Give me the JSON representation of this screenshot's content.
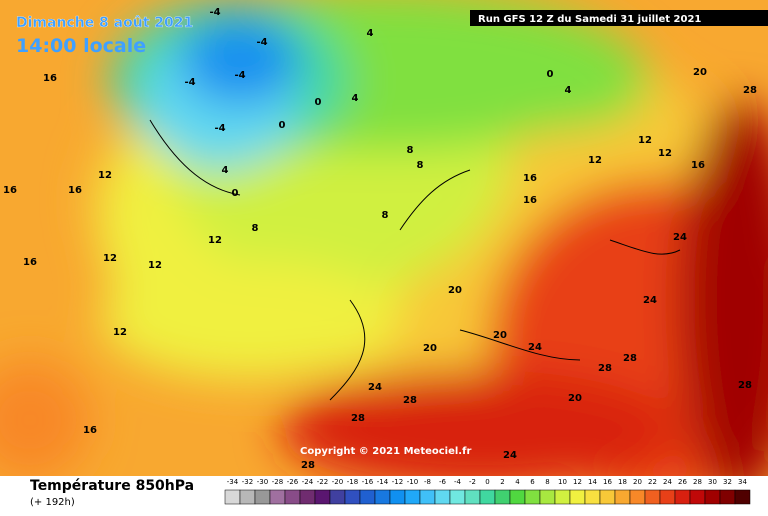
{
  "header": {
    "title": "Dimanche 8 août 2021",
    "time": "14:00 locale",
    "run": "Run GFS 12 Z du Samedi 31 juillet 2021"
  },
  "copyright": "Copyright © 2021 Meteociel.fr",
  "footer": {
    "variable": "Température 850hPa",
    "lead": "(+ 192h)"
  },
  "map_labels": [
    "-4",
    "-4",
    "-4",
    "-4",
    "-4",
    "0",
    "0",
    "4",
    "4",
    "0",
    "4",
    "8",
    "8",
    "12",
    "12",
    "16",
    "16",
    "16",
    "16",
    "12",
    "12",
    "16",
    "16",
    "20",
    "20",
    "20",
    "24",
    "24",
    "28",
    "28",
    "24",
    "24",
    "28",
    "28",
    "28",
    "28",
    "20",
    "16",
    "20",
    "24",
    "28",
    "8",
    "8",
    "12",
    "16",
    "12",
    "0",
    "4",
    "12",
    "12"
  ],
  "legend": {
    "values": [
      -34,
      -32,
      -30,
      -28,
      -26,
      -24,
      -22,
      -20,
      -18,
      -16,
      -14,
      -12,
      -10,
      -8,
      -6,
      -4,
      -2,
      0,
      2,
      4,
      6,
      8,
      10,
      12,
      14,
      16,
      18,
      20,
      22,
      24,
      26,
      28,
      30,
      32,
      34
    ],
    "colors": [
      "#d8d8d8",
      "#b8b8b8",
      "#989898",
      "#a070a0",
      "#884c88",
      "#702c70",
      "#5a1670",
      "#4040a0",
      "#3050c0",
      "#2060d0",
      "#1878e0",
      "#1090f0",
      "#20a8f8",
      "#40c0f8",
      "#60d8f0",
      "#70e8e0",
      "#60e0c0",
      "#40d8a0",
      "#40d070",
      "#50d840",
      "#80e040",
      "#a8e840",
      "#d0f040",
      "#f0f040",
      "#f8e040",
      "#f8c838",
      "#f8a830",
      "#f88828",
      "#f06020",
      "#e84018",
      "#d82010",
      "#c00808",
      "#a00000",
      "#800000",
      "#500000"
    ]
  }
}
